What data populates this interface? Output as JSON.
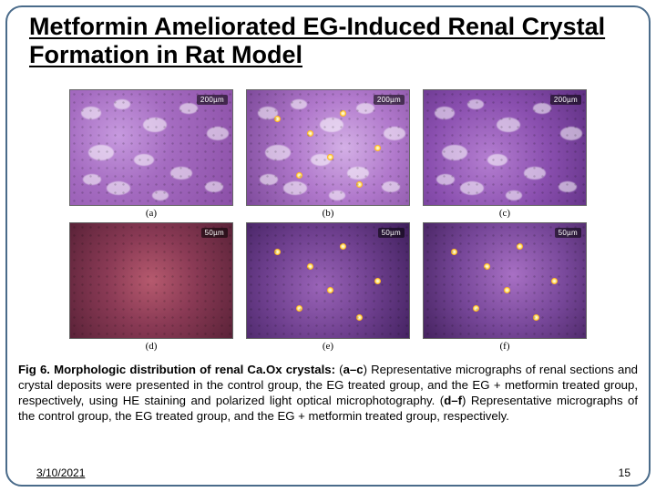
{
  "title": "Metformin Ameliorated EG-Induced Renal Crystal Formation in Rat Model",
  "panels": [
    {
      "key": "a",
      "label": "(a)",
      "scale": "200µm",
      "style_class": "histo-a",
      "blobs": true,
      "sparkles": false
    },
    {
      "key": "b",
      "label": "(b)",
      "scale": "200µm",
      "style_class": "histo-b",
      "blobs": true,
      "sparkles": true
    },
    {
      "key": "c",
      "label": "(c)",
      "scale": "200µm",
      "style_class": "histo-c",
      "blobs": true,
      "sparkles": false
    },
    {
      "key": "d",
      "label": "(d)",
      "scale": "50µm",
      "style_class": "histo-d",
      "blobs": false,
      "sparkles": false
    },
    {
      "key": "e",
      "label": "(e)",
      "scale": "50µm",
      "style_class": "histo-e",
      "blobs": false,
      "sparkles": true
    },
    {
      "key": "f",
      "label": "(f)",
      "scale": "50µm",
      "style_class": "histo-f",
      "blobs": false,
      "sparkles": true
    }
  ],
  "caption_lead_bold": "Fig 6. Morphologic distribution of renal Ca.Ox crystals:",
  "caption_seg1": " (",
  "caption_bold_ac": "a–c",
  "caption_seg2": ") Representative micrographs of renal sections and crystal deposits were presented in the control group, the EG treated group, and the EG + metformin treated group, respectively, using HE staining and polarized light optical microphotography. (",
  "caption_bold_df": "d–f",
  "caption_seg3": ") Representative micrographs of the control  group, the EG treated group, and the EG + metformin treated group, respectively.",
  "footer": {
    "date": "3/10/2021",
    "page": "15"
  },
  "colors": {
    "frame_border": "#4a6b8a",
    "background": "#ffffff",
    "text": "#000000"
  }
}
